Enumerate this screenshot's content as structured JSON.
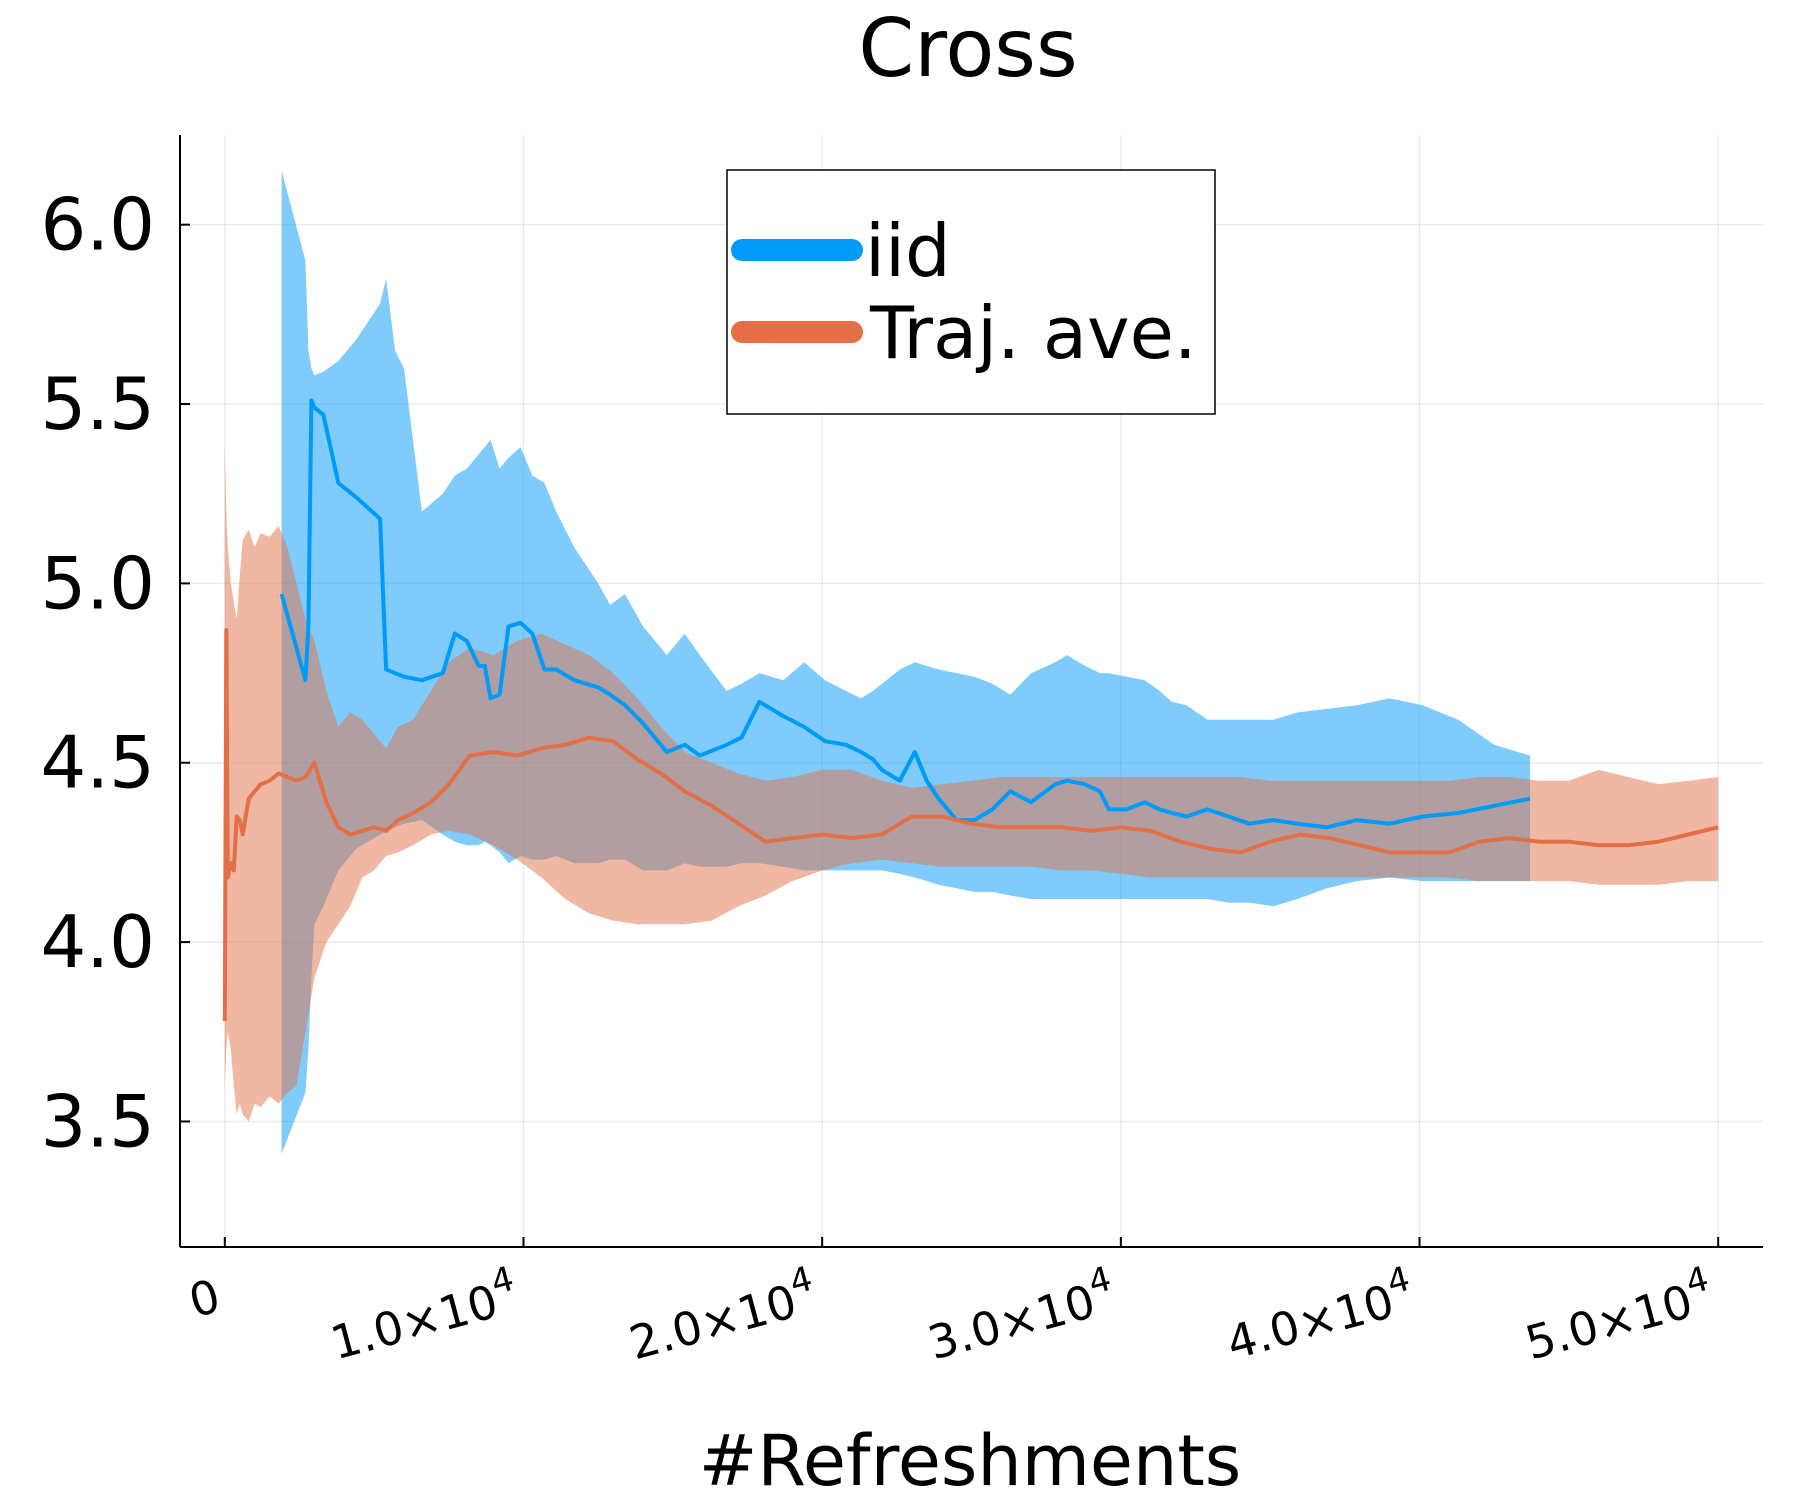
{
  "chart_data": {
    "type": "line",
    "title": "Cross",
    "xlabel": "#Refreshments",
    "ylabel": "",
    "xlim": [
      -1500,
      51500
    ],
    "ylim": [
      3.15,
      6.25
    ],
    "grid": true,
    "legend_position": "top-center",
    "x_ticks": [
      {
        "value": 0,
        "mantissa": "0",
        "exponent": ""
      },
      {
        "value": 10000,
        "mantissa": "1.0×10",
        "exponent": "4"
      },
      {
        "value": 20000,
        "mantissa": "2.0×10",
        "exponent": "4"
      },
      {
        "value": 30000,
        "mantissa": "3.0×10",
        "exponent": "4"
      },
      {
        "value": 40000,
        "mantissa": "4.0×10",
        "exponent": "4"
      },
      {
        "value": 50000,
        "mantissa": "5.0×10",
        "exponent": "4"
      }
    ],
    "y_ticks": [
      {
        "value": 3.5,
        "label": "3.5"
      },
      {
        "value": 4.0,
        "label": "4.0"
      },
      {
        "value": 4.5,
        "label": "4.5"
      },
      {
        "value": 5.0,
        "label": "5.0"
      },
      {
        "value": 5.5,
        "label": "5.5"
      },
      {
        "value": 6.0,
        "label": "6.0"
      }
    ],
    "series": [
      {
        "name": "iid",
        "color": "#009af9",
        "band_color": "#009af9",
        "x": [
          1900,
          2700,
          2800,
          2900,
          3000,
          3300,
          3800,
          4400,
          5200,
          5400,
          5700,
          6000,
          6600,
          7300,
          7700,
          8100,
          8500,
          8700,
          8900,
          9200,
          9500,
          9900,
          10300,
          10700,
          11100,
          11700,
          12500,
          12900,
          13400,
          14000,
          14800,
          15400,
          15900,
          16800,
          17300,
          17900,
          18700,
          19400,
          20100,
          20800,
          21300,
          21700,
          22000,
          22600,
          23100,
          23500,
          23900,
          24500,
          25100,
          25700,
          26300,
          27000,
          27800,
          28200,
          28800,
          29300,
          29600,
          30200,
          30800,
          31300,
          31700,
          32200,
          32900,
          33600,
          34300,
          35100,
          35900,
          36900,
          37900,
          39000,
          40100,
          41300,
          42500,
          43700
        ],
        "mean": [
          4.97,
          4.73,
          4.88,
          5.51,
          5.49,
          5.47,
          5.28,
          5.24,
          5.18,
          4.76,
          4.75,
          4.74,
          4.73,
          4.75,
          4.86,
          4.84,
          4.77,
          4.77,
          4.68,
          4.69,
          4.88,
          4.89,
          4.86,
          4.76,
          4.76,
          4.73,
          4.71,
          4.69,
          4.66,
          4.61,
          4.53,
          4.55,
          4.52,
          4.55,
          4.57,
          4.67,
          4.63,
          4.6,
          4.56,
          4.55,
          4.53,
          4.51,
          4.48,
          4.45,
          4.53,
          4.45,
          4.4,
          4.34,
          4.34,
          4.37,
          4.42,
          4.39,
          4.44,
          4.45,
          4.44,
          4.42,
          4.37,
          4.37,
          4.39,
          4.37,
          4.36,
          4.35,
          4.37,
          4.35,
          4.33,
          4.34,
          4.33,
          4.32,
          4.34,
          4.33,
          4.35,
          4.36,
          4.38,
          4.4
        ],
        "upper": [
          6.15,
          5.9,
          5.65,
          5.6,
          5.58,
          5.59,
          5.62,
          5.68,
          5.78,
          5.85,
          5.65,
          5.6,
          5.2,
          5.25,
          5.3,
          5.32,
          5.36,
          5.38,
          5.4,
          5.32,
          5.35,
          5.38,
          5.3,
          5.28,
          5.2,
          5.1,
          5.0,
          4.94,
          4.97,
          4.88,
          4.8,
          4.86,
          4.8,
          4.7,
          4.72,
          4.75,
          4.73,
          4.78,
          4.73,
          4.7,
          4.68,
          4.7,
          4.72,
          4.76,
          4.78,
          4.77,
          4.76,
          4.75,
          4.74,
          4.72,
          4.69,
          4.75,
          4.78,
          4.8,
          4.77,
          4.75,
          4.75,
          4.74,
          4.73,
          4.7,
          4.67,
          4.66,
          4.62,
          4.62,
          4.62,
          4.62,
          4.64,
          4.65,
          4.66,
          4.68,
          4.66,
          4.62,
          4.55,
          4.52
        ],
        "lower": [
          3.41,
          3.58,
          3.7,
          3.9,
          4.05,
          4.1,
          4.2,
          4.26,
          4.3,
          4.31,
          4.32,
          4.33,
          4.34,
          4.3,
          4.28,
          4.27,
          4.27,
          4.28,
          4.27,
          4.25,
          4.22,
          4.24,
          4.23,
          4.23,
          4.24,
          4.22,
          4.22,
          4.23,
          4.23,
          4.2,
          4.2,
          4.22,
          4.21,
          4.21,
          4.22,
          4.22,
          4.21,
          4.2,
          4.2,
          4.2,
          4.2,
          4.2,
          4.2,
          4.19,
          4.18,
          4.17,
          4.16,
          4.15,
          4.14,
          4.14,
          4.13,
          4.12,
          4.12,
          4.12,
          4.12,
          4.12,
          4.12,
          4.12,
          4.12,
          4.12,
          4.12,
          4.12,
          4.12,
          4.11,
          4.11,
          4.1,
          4.12,
          4.15,
          4.17,
          4.18,
          4.17,
          4.17,
          4.17,
          4.17
        ]
      },
      {
        "name": "Traj. ave.",
        "color": "#e26f46",
        "band_color": "#e26f46",
        "x": [
          0,
          50,
          100,
          200,
          300,
          400,
          500,
          600,
          800,
          1000,
          1200,
          1500,
          1800,
          2100,
          2400,
          2700,
          3000,
          3400,
          3800,
          4200,
          4600,
          5000,
          5400,
          5800,
          6300,
          6900,
          7500,
          8200,
          9000,
          9800,
          10600,
          11400,
          12200,
          13000,
          13800,
          14600,
          15400,
          16300,
          17200,
          18100,
          19000,
          20000,
          21000,
          22000,
          23000,
          24000,
          25000,
          26000,
          27000,
          28000,
          29000,
          30000,
          31000,
          32000,
          33000,
          34000,
          35000,
          36000,
          37000,
          38000,
          39000,
          40000,
          41000,
          42000,
          43000,
          44000,
          45000,
          46000,
          47000,
          48000,
          49000,
          50000
        ],
        "mean": [
          3.78,
          4.87,
          4.18,
          4.22,
          4.2,
          4.35,
          4.34,
          4.3,
          4.4,
          4.42,
          4.44,
          4.45,
          4.47,
          4.46,
          4.45,
          4.46,
          4.5,
          4.39,
          4.32,
          4.3,
          4.31,
          4.32,
          4.31,
          4.34,
          4.36,
          4.39,
          4.44,
          4.52,
          4.53,
          4.52,
          4.54,
          4.55,
          4.57,
          4.56,
          4.51,
          4.47,
          4.42,
          4.38,
          4.33,
          4.28,
          4.29,
          4.3,
          4.29,
          4.3,
          4.35,
          4.35,
          4.33,
          4.32,
          4.32,
          4.32,
          4.31,
          4.32,
          4.31,
          4.28,
          4.26,
          4.25,
          4.28,
          4.3,
          4.29,
          4.27,
          4.25,
          4.25,
          4.25,
          4.28,
          4.29,
          4.28,
          4.28,
          4.27,
          4.27,
          4.28,
          4.3,
          4.32
        ],
        "upper": [
          5.38,
          5.2,
          5.1,
          5.0,
          4.95,
          4.9,
          5.02,
          5.12,
          5.15,
          5.1,
          5.14,
          5.13,
          5.16,
          5.1,
          5.0,
          4.9,
          4.84,
          4.7,
          4.6,
          4.64,
          4.62,
          4.58,
          4.54,
          4.6,
          4.62,
          4.7,
          4.78,
          4.82,
          4.8,
          4.84,
          4.86,
          4.83,
          4.8,
          4.75,
          4.68,
          4.6,
          4.53,
          4.5,
          4.47,
          4.45,
          4.46,
          4.48,
          4.48,
          4.45,
          4.43,
          4.44,
          4.45,
          4.46,
          4.46,
          4.46,
          4.46,
          4.46,
          4.46,
          4.46,
          4.46,
          4.46,
          4.45,
          4.45,
          4.45,
          4.45,
          4.45,
          4.45,
          4.45,
          4.46,
          4.46,
          4.45,
          4.45,
          4.48,
          4.46,
          4.44,
          4.45,
          4.46
        ],
        "lower": [
          3.6,
          3.7,
          3.75,
          3.7,
          3.6,
          3.52,
          3.55,
          3.52,
          3.5,
          3.55,
          3.54,
          3.57,
          3.55,
          3.58,
          3.6,
          3.75,
          3.9,
          4.0,
          4.05,
          4.1,
          4.18,
          4.2,
          4.24,
          4.25,
          4.27,
          4.3,
          4.31,
          4.3,
          4.27,
          4.23,
          4.18,
          4.12,
          4.08,
          4.06,
          4.05,
          4.05,
          4.05,
          4.06,
          4.1,
          4.13,
          4.17,
          4.2,
          4.22,
          4.23,
          4.22,
          4.21,
          4.21,
          4.21,
          4.21,
          4.2,
          4.2,
          4.19,
          4.18,
          4.18,
          4.18,
          4.18,
          4.18,
          4.18,
          4.18,
          4.18,
          4.18,
          4.18,
          4.18,
          4.17,
          4.17,
          4.17,
          4.17,
          4.16,
          4.16,
          4.16,
          4.17,
          4.17
        ]
      }
    ]
  }
}
